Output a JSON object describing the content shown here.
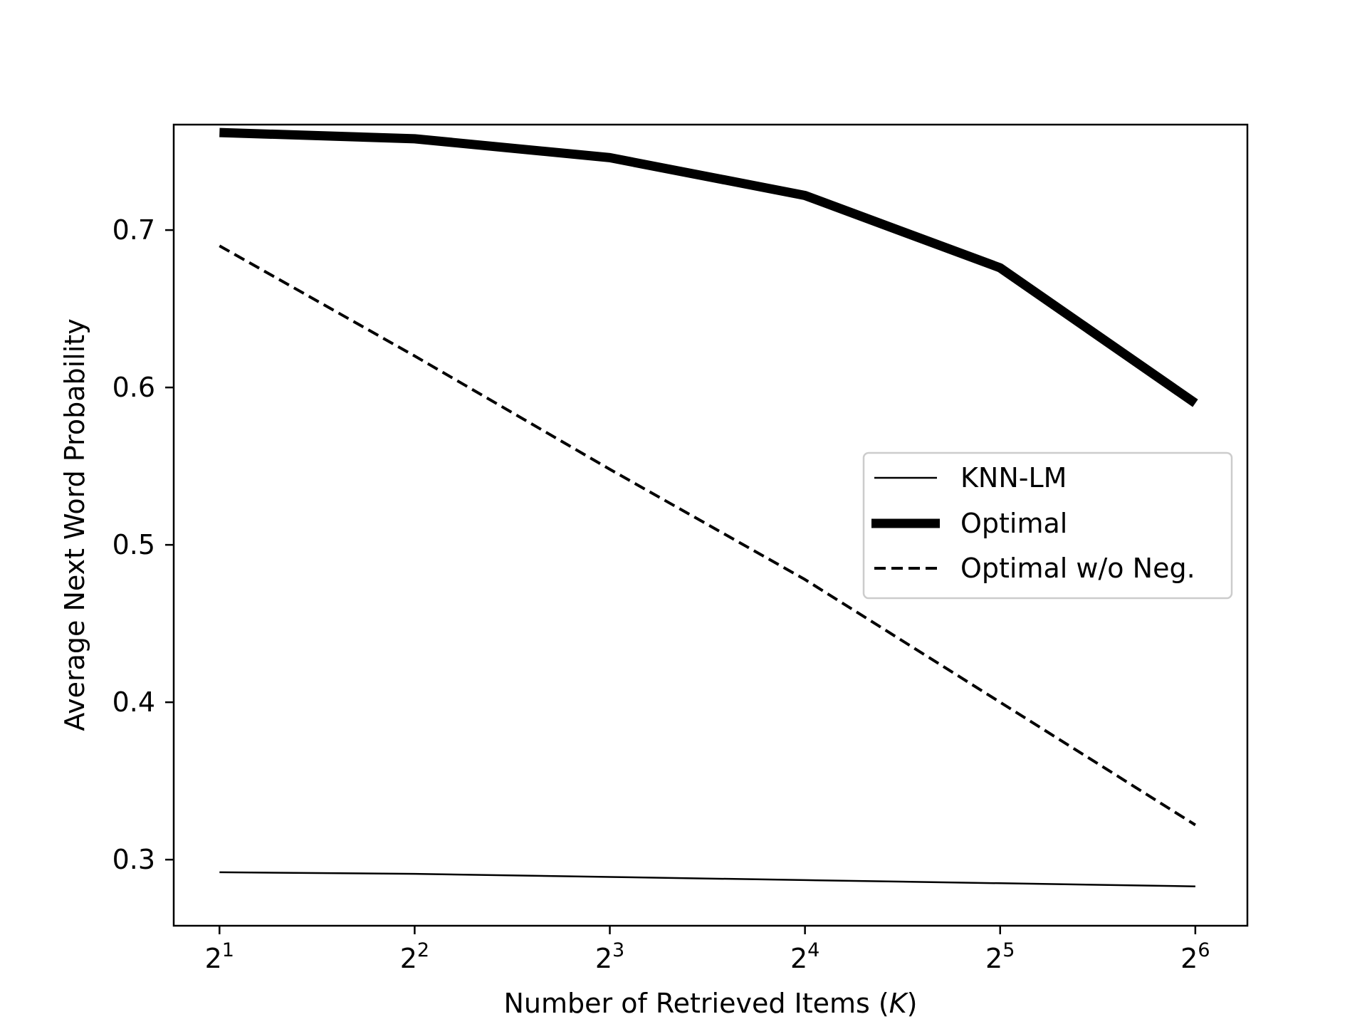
{
  "chart_data": {
    "type": "line",
    "title": "",
    "xlabel_prefix": "Number of Retrieved Items (",
    "xlabel_var": "K",
    "xlabel_suffix": ")",
    "ylabel": "Average Next Word Probability",
    "x": [
      2,
      4,
      8,
      16,
      32,
      64
    ],
    "x_scale": "log2",
    "x_tick_base": "2",
    "x_tick_exponents": [
      "1",
      "2",
      "3",
      "4",
      "5",
      "6"
    ],
    "xlim": [
      1.7,
      77
    ],
    "ylim": [
      0.258,
      0.767
    ],
    "y_ticks": [
      0.3,
      0.4,
      0.5,
      0.6,
      0.7
    ],
    "y_tick_labels": [
      "0.3",
      "0.4",
      "0.5",
      "0.6",
      "0.7"
    ],
    "grid": false,
    "legend_position": "right",
    "series": [
      {
        "name": "KNN-LM",
        "style": "solid-thin",
        "color": "#000000",
        "values": [
          0.292,
          0.291,
          0.289,
          0.287,
          0.285,
          0.283
        ]
      },
      {
        "name": "Optimal",
        "style": "solid-thick",
        "color": "#000000",
        "values": [
          0.762,
          0.758,
          0.746,
          0.722,
          0.676,
          0.59
        ]
      },
      {
        "name": "Optimal w/o Neg.",
        "style": "dashed",
        "color": "#000000",
        "values": [
          0.69,
          0.62,
          0.548,
          0.478,
          0.4,
          0.322
        ]
      }
    ]
  }
}
